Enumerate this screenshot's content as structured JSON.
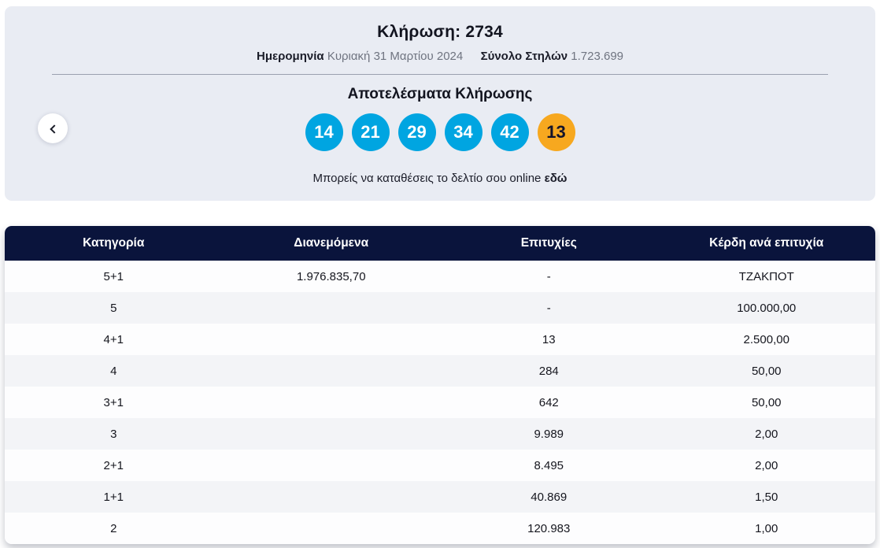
{
  "draw": {
    "title_label": "Κλήρωση:",
    "title_number": "2734",
    "date_label": "Ημερομηνία",
    "date_value": "Κυριακή 31 Μαρτίου 2024",
    "columns_label": "Σύνολο Στηλών",
    "columns_value": "1.723.699",
    "results_title": "Αποτελέσματα Κλήρωσης",
    "numbers": [
      "14",
      "21",
      "29",
      "34",
      "42"
    ],
    "joker": "13",
    "online_text": "Μπορείς να καταθέσεις το δελτίο σου online",
    "online_link": "εδώ"
  },
  "icons": {
    "prev": "chevron-left"
  },
  "colors": {
    "ball_blue": "#00a5e1",
    "ball_joker_orange": "#f7a81f",
    "header_navy": "#0a143c",
    "card_background": "#e9ecf3",
    "alt_row": "#f3f4f7"
  },
  "table": {
    "headers": [
      "Κατηγορία",
      "Διανεμόμενα",
      "Επιτυχίες",
      "Κέρδη ανά επιτυχία"
    ],
    "rows": [
      {
        "category": "5+1",
        "distributed": "1.976.835,70",
        "winners": "-",
        "prize": "ΤΖΑΚΠΟΤ"
      },
      {
        "category": "5",
        "distributed": "",
        "winners": "-",
        "prize": "100.000,00"
      },
      {
        "category": "4+1",
        "distributed": "",
        "winners": "13",
        "prize": "2.500,00"
      },
      {
        "category": "4",
        "distributed": "",
        "winners": "284",
        "prize": "50,00"
      },
      {
        "category": "3+1",
        "distributed": "",
        "winners": "642",
        "prize": "50,00"
      },
      {
        "category": "3",
        "distributed": "",
        "winners": "9.989",
        "prize": "2,00"
      },
      {
        "category": "2+1",
        "distributed": "",
        "winners": "8.495",
        "prize": "2,00"
      },
      {
        "category": "1+1",
        "distributed": "",
        "winners": "40.869",
        "prize": "1,50"
      },
      {
        "category": "2",
        "distributed": "",
        "winners": "120.983",
        "prize": "1,00"
      }
    ]
  }
}
